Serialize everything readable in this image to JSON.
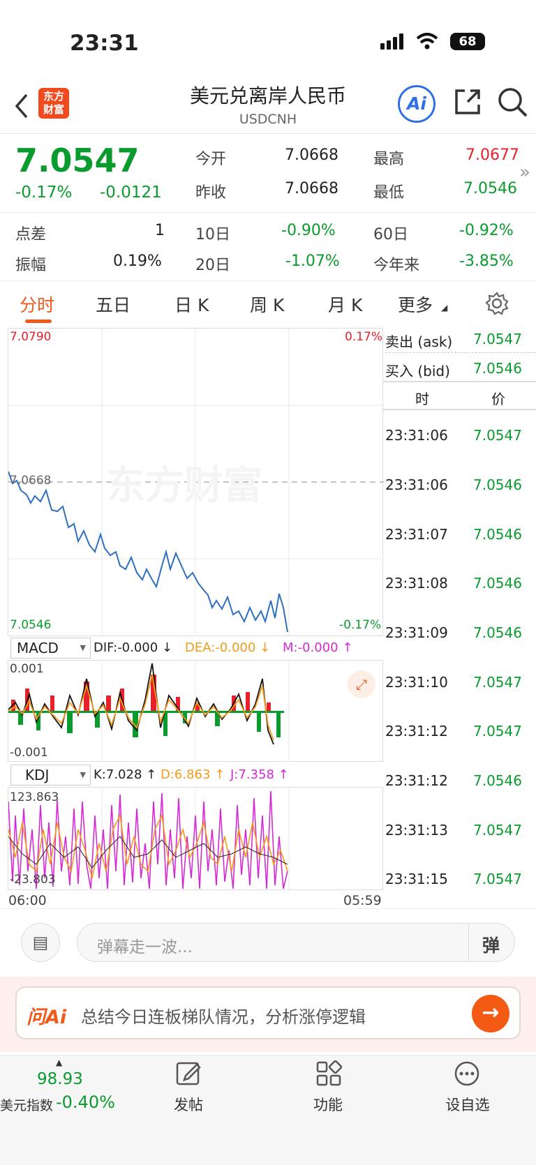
{
  "status": {
    "time": "23:31",
    "battery": "68"
  },
  "header": {
    "logo": "东方\n财富",
    "title": "美元兑离岸人民币",
    "subtitle": "USDCNH",
    "ai_label": "Ai"
  },
  "quote": {
    "price": "7.0547",
    "pct": "-0.17%",
    "chg": "-0.0121",
    "open_label": "今开",
    "open": "7.0668",
    "prev_label": "昨收",
    "prev": "7.0668",
    "high_label": "最高",
    "high": "7.0677",
    "low_label": "最低",
    "low": "7.0546",
    "spread_label": "点差",
    "spread": "1",
    "amp_label": "振幅",
    "amp": "0.19%",
    "d10_label": "10日",
    "d10": "-0.90%",
    "d20_label": "20日",
    "d20": "-1.07%",
    "d60_label": "60日",
    "d60": "-0.92%",
    "ytd_label": "今年来",
    "ytd": "-3.85%"
  },
  "tabs": [
    "分时",
    "五日",
    "日 K",
    "周 K",
    "月 K",
    "更多"
  ],
  "chart": {
    "top_price": "7.0790",
    "top_pct": "0.17%",
    "mid_price": "7.0668",
    "low_price": "7.0546",
    "low_pct": "-0.17%",
    "watermark": "东方财富",
    "macd_label": "MACD",
    "dif": "DIF:-0.000 ↓",
    "dea": "DEA:-0.000 ↓",
    "m": "M:-0.000 ↑",
    "macd_top": "0.001",
    "macd_bot": "-0.001",
    "kdj_label": "KDJ",
    "k": "K:7.028 ↑",
    "d": "D:6.863 ↑",
    "j": "J:7.358 ↑",
    "kdj_top": "123.863",
    "kdj_bot": "-23.803",
    "time_start": "06:00",
    "time_end": "05:59"
  },
  "book": {
    "ask_label": "卖出 (ask)",
    "ask": "7.0547",
    "bid_label": "买入 (bid)",
    "bid": "7.0546",
    "col_time": "时",
    "col_price": "价"
  },
  "trades": [
    {
      "t": "23:31:06",
      "p": "7.0547"
    },
    {
      "t": "23:31:06",
      "p": "7.0546"
    },
    {
      "t": "23:31:07",
      "p": "7.0546"
    },
    {
      "t": "23:31:08",
      "p": "7.0546"
    },
    {
      "t": "23:31:09",
      "p": "7.0546"
    },
    {
      "t": "23:31:10",
      "p": "7.0547"
    },
    {
      "t": "23:31:12",
      "p": "7.0547"
    },
    {
      "t": "23:31:12",
      "p": "7.0546"
    },
    {
      "t": "23:31:13",
      "p": "7.0547"
    },
    {
      "t": "23:31:15",
      "p": "7.0547"
    }
  ],
  "comment": {
    "placeholder": "弹幕走一波...",
    "danmu": "弹"
  },
  "ask_ai": {
    "brand": "问Ai",
    "prompt": "总结今日连板梯队情况，分析涨停逻辑"
  },
  "bottom": {
    "index_value": "98.93",
    "index_name": "美元指数",
    "index_pct": "-0.40%",
    "post": "发帖",
    "func": "功能",
    "watch": "设自选"
  }
}
